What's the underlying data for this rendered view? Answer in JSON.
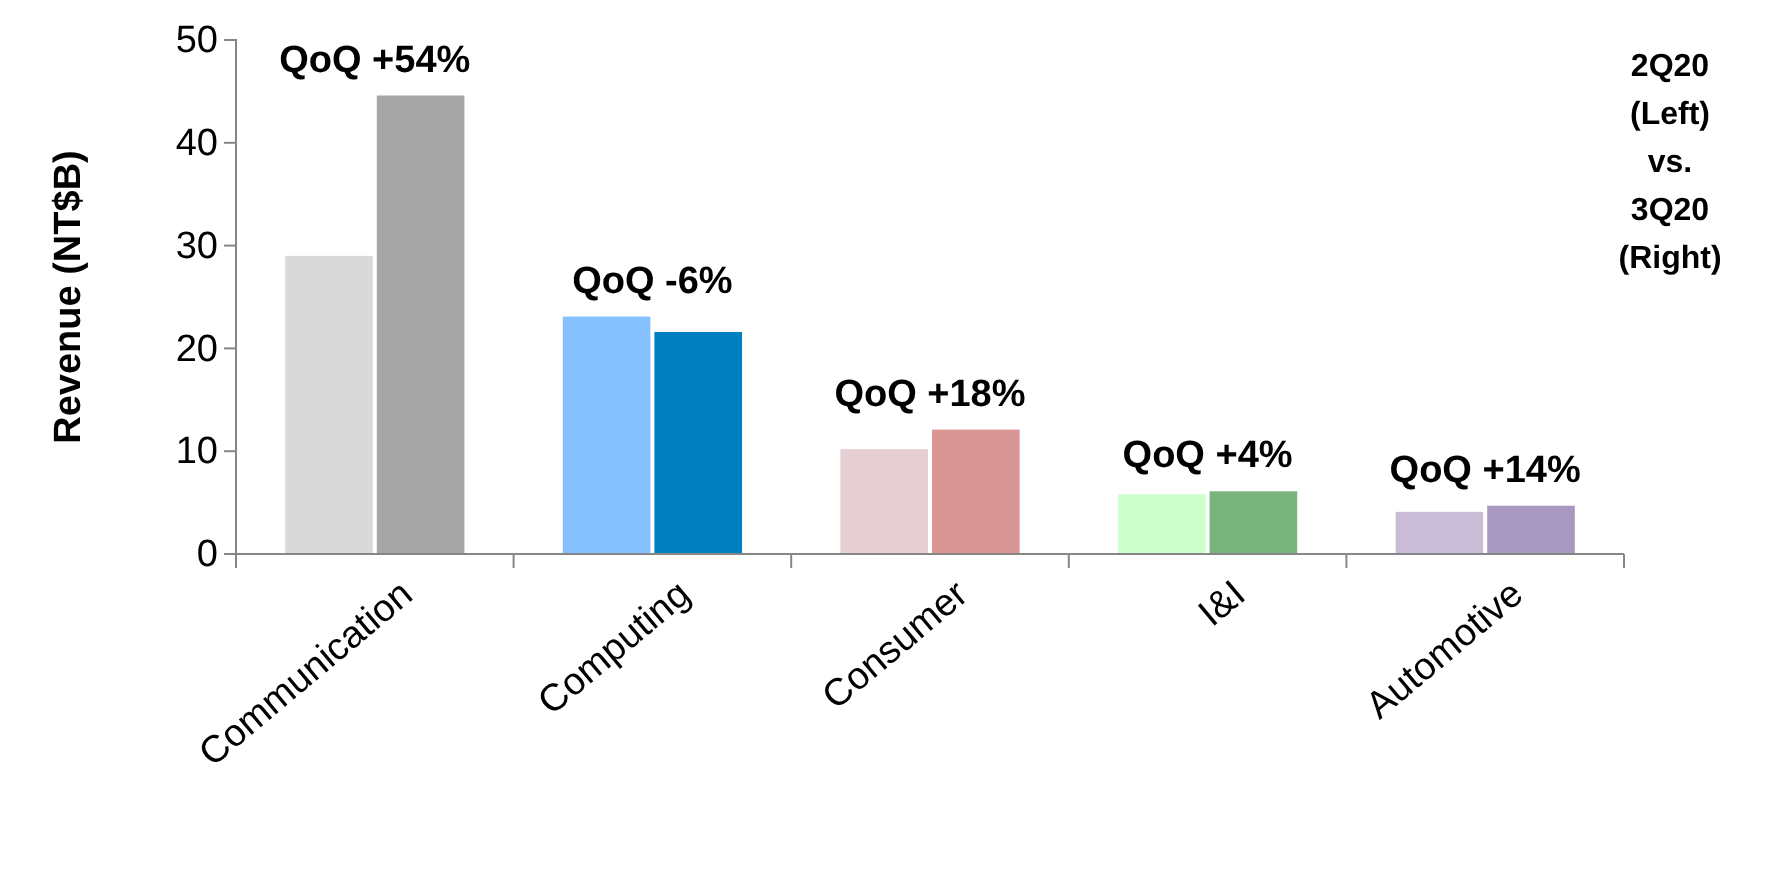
{
  "chart_data": {
    "type": "bar",
    "ylabel": "Revenue (NT$B)",
    "categories": [
      "Communication",
      "Computing",
      "Consumer",
      "I&I",
      "Automotive"
    ],
    "series": [
      {
        "colors": [
          "#d9d9d9",
          "#85c1ff",
          "#e6cfd2",
          "#ccffcc",
          "#c9bcd6"
        ],
        "values": [
          29,
          23.1,
          10.2,
          5.8,
          4.1
        ]
      },
      {
        "colors": [
          "#a6a6a6",
          "#0080c0",
          "#d99594",
          "#78b47b",
          "#a899c0"
        ],
        "values": [
          44.6,
          21.6,
          12.1,
          6.1,
          4.7
        ]
      }
    ],
    "ylim": [
      0,
      50
    ],
    "yticks": [
      0,
      10,
      20,
      30,
      40,
      50
    ],
    "grid": false,
    "annotations": [
      "QoQ +54%",
      "QoQ -6%",
      "QoQ +18%",
      "QoQ +4%",
      "QoQ +14%",
      "2Q20\n(Left)\nvs.\n3Q20\n(Right)"
    ]
  }
}
